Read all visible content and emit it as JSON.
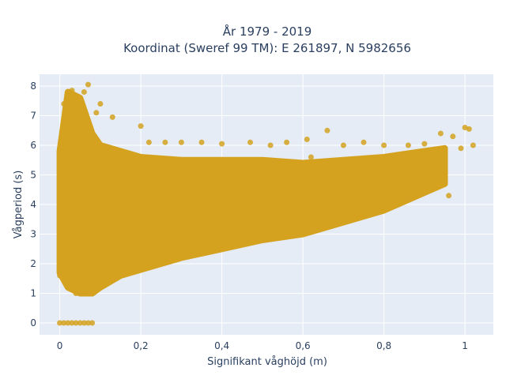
{
  "chart_data": {
    "type": "scatter",
    "title_lines": [
      "År 1979 - 2019",
      "Koordinat (Sweref 99 TM): E 261897, N 5982656"
    ],
    "xlabel": "Signifikant våghöjd (m)",
    "ylabel": "Vågperiod (s)",
    "xlim": [
      -0.05,
      1.07
    ],
    "ylim": [
      -0.4,
      8.4
    ],
    "xticks": [
      0,
      0.2,
      0.4,
      0.6,
      0.8,
      1
    ],
    "xtick_labels": [
      "0",
      "0,2",
      "0,4",
      "0,6",
      "0,8",
      "1"
    ],
    "yticks": [
      0,
      1,
      2,
      3,
      4,
      5,
      6,
      7,
      8
    ],
    "ytick_labels": [
      "0",
      "1",
      "2",
      "3",
      "4",
      "5",
      "6",
      "7",
      "8"
    ],
    "grid": true,
    "series": [
      {
        "color": "#d4a21f",
        "envelope": {
          "x": [
            0.0,
            0.02,
            0.05,
            0.08,
            0.1,
            0.15,
            0.2,
            0.3,
            0.4,
            0.5,
            0.6,
            0.7,
            0.8,
            0.9,
            0.95
          ],
          "y_low": [
            1.7,
            1.2,
            1.0,
            1.0,
            1.2,
            1.6,
            1.8,
            2.2,
            2.5,
            2.8,
            3.0,
            3.4,
            3.8,
            4.4,
            4.7
          ],
          "y_high": [
            5.8,
            7.8,
            7.6,
            6.4,
            6.0,
            5.8,
            5.6,
            5.5,
            5.5,
            5.5,
            5.4,
            5.5,
            5.6,
            5.8,
            5.9
          ]
        },
        "points": [
          [
            0.0,
            0.0
          ],
          [
            0.01,
            0.0
          ],
          [
            0.02,
            0.0
          ],
          [
            0.03,
            0.0
          ],
          [
            0.04,
            0.0
          ],
          [
            0.05,
            0.0
          ],
          [
            0.06,
            0.0
          ],
          [
            0.07,
            0.0
          ],
          [
            0.08,
            0.0
          ],
          [
            0.07,
            8.05
          ],
          [
            0.03,
            7.85
          ],
          [
            0.06,
            7.8
          ],
          [
            0.1,
            7.4
          ],
          [
            0.09,
            7.1
          ],
          [
            0.13,
            6.95
          ],
          [
            0.2,
            6.65
          ],
          [
            0.22,
            6.1
          ],
          [
            0.26,
            6.1
          ],
          [
            0.3,
            6.1
          ],
          [
            0.35,
            6.1
          ],
          [
            0.4,
            6.05
          ],
          [
            0.47,
            6.1
          ],
          [
            0.52,
            6.0
          ],
          [
            0.56,
            6.1
          ],
          [
            0.61,
            6.2
          ],
          [
            0.66,
            6.5
          ],
          [
            0.7,
            6.0
          ],
          [
            0.75,
            6.1
          ],
          [
            0.8,
            6.0
          ],
          [
            0.86,
            6.0
          ],
          [
            0.9,
            6.05
          ],
          [
            0.94,
            6.4
          ],
          [
            0.97,
            6.3
          ],
          [
            1.0,
            6.6
          ],
          [
            1.01,
            6.55
          ],
          [
            1.02,
            6.0
          ],
          [
            0.99,
            5.9
          ],
          [
            0.93,
            5.5
          ],
          [
            0.88,
            5.7
          ],
          [
            0.96,
            4.3
          ],
          [
            0.9,
            4.6
          ],
          [
            0.81,
            3.9
          ],
          [
            0.8,
            3.8
          ],
          [
            0.76,
            4.6
          ],
          [
            0.72,
            4.2
          ],
          [
            0.68,
            3.9
          ],
          [
            0.65,
            3.5
          ],
          [
            0.6,
            3.2
          ],
          [
            0.55,
            3.05
          ],
          [
            0.5,
            2.85
          ],
          [
            0.45,
            2.7
          ],
          [
            0.38,
            2.55
          ],
          [
            0.3,
            2.3
          ],
          [
            0.22,
            2.0
          ],
          [
            0.15,
            1.7
          ],
          [
            0.12,
            1.35
          ],
          [
            0.08,
            1.05
          ],
          [
            0.04,
            1.0
          ],
          [
            0.02,
            1.3
          ],
          [
            0.0,
            1.6
          ],
          [
            0.0,
            1.9
          ],
          [
            0.0,
            5.2
          ],
          [
            0.0,
            5.9
          ],
          [
            0.01,
            7.4
          ],
          [
            0.02,
            7.2
          ],
          [
            0.62,
            5.6
          ],
          [
            0.64,
            5.2
          ],
          [
            0.83,
            5.3
          ],
          [
            0.85,
            5.6
          ]
        ]
      }
    ]
  }
}
